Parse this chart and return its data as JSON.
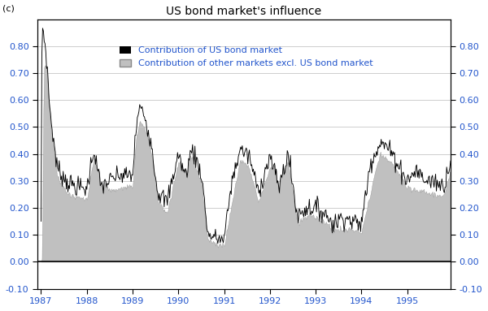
{
  "title": "US bond market's influence",
  "panel_label": "(c)",
  "ylim": [
    -0.1,
    0.9
  ],
  "yticks": [
    -0.1,
    0.0,
    0.1,
    0.2,
    0.3,
    0.4,
    0.5,
    0.6,
    0.7,
    0.8
  ],
  "ytick_labels": [
    "-0.10",
    "0.00",
    "0.10",
    "0.20",
    "0.30",
    "0.40",
    "0.50",
    "0.60",
    "0.70",
    "0.80"
  ],
  "xlim_start": 1986.92,
  "xlim_end": 1995.95,
  "xtick_positions": [
    1987,
    1988,
    1989,
    1990,
    1991,
    1992,
    1993,
    1994,
    1995
  ],
  "xtick_labels": [
    "1987",
    "1988",
    "1989",
    "1990",
    "1991",
    "1992",
    "1993",
    "1994",
    "1995"
  ],
  "legend_line_label": "Contribution of US bond market",
  "legend_fill_label": "Contribution of other markets excl. US bond market",
  "line_color": "#000000",
  "fill_color": "#c0c0c0",
  "fill_edge_color": "#888888",
  "background_color": "#ffffff",
  "grid_color": "#bbbbbb",
  "title_fontsize": 10,
  "legend_fontsize": 8,
  "tick_fontsize": 8,
  "tick_color": "#2255cc",
  "legend_text_color": "#2255cc"
}
